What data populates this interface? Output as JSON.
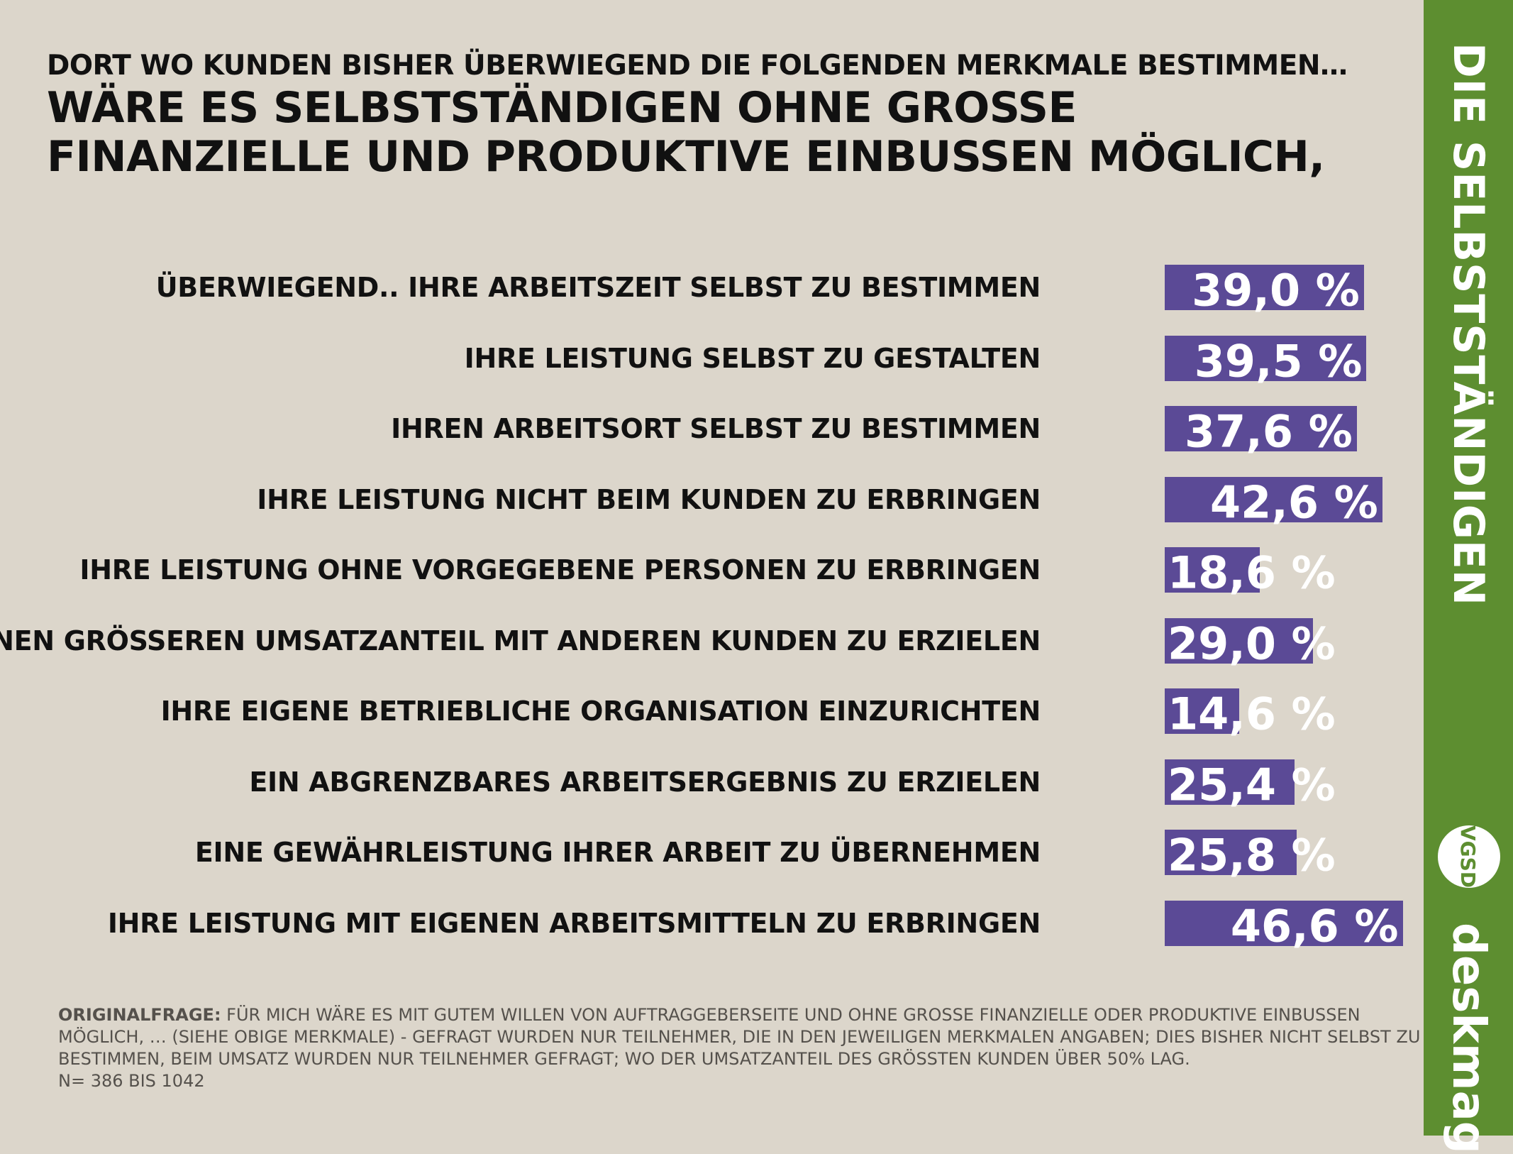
{
  "kicker": "DORT WO KUNDEN BISHER ÜBERWIEGEND DIE FOLGENDEN MERKMALE BESTIMMEN…",
  "headline": "WÄRE ES SELBSTSTÄNDIGEN OHNE GROSSE FINANZIELLE UND PRODUKTIVE EINBUSSEN MÖGLICH,",
  "side_title": "DIE SELBSTSTÄNDIGEN",
  "brand": "deskmag",
  "logo_text": "VGSD",
  "footnote": {
    "label": "ORIGINALFRAGE:",
    "text": " FÜR MICH WÄRE ES MIT GUTEM WILLEN VON AUFTRAGGEBERSEITE UND OHNE GROSSE FINANZIELLE ODER PRODUKTIVE EINBUSSEN MÖGLICH, … (SIEHE OBIGE MERKMALE) - GEFRAGT WURDEN NUR TEILNEHMER, DIE IN DEN JEWEILIGEN MERKMALEN ANGABEN; DIES BISHER NICHT SELBST ZU BESTIMMEN, BEIM UMSATZ WURDEN NUR TEILNEHMER GEFRAGT; WO DER UMSATZANTEIL DES GRÖSSTEN KUNDEN ÜBER 50% LAG.",
    "n": "N= 386 BIS 1042"
  },
  "colors": {
    "bar": "#5b4a96",
    "background": "#dcd6cb",
    "side": "#5d8e30"
  },
  "chart_data": {
    "type": "bar",
    "orientation": "horizontal",
    "categories": [
      "ÜBERWIEGEND.. IHRE ARBEITSZEIT SELBST ZU BESTIMMEN",
      "IHRE LEISTUNG SELBST ZU GESTALTEN",
      "IHREN ARBEITSORT SELBST ZU BESTIMMEN",
      "IHRE LEISTUNG NICHT BEIM KUNDEN ZU ERBRINGEN",
      "IHRE LEISTUNG OHNE VORGEGEBENE PERSONEN ZU ERBRINGEN",
      "EINEN GRÖSSEREN UMSATZANTEIL MIT ANDEREN KUNDEN ZU ERZIELEN",
      "IHRE EIGENE BETRIEBLICHE ORGANISATION EINZURICHTEN",
      "EIN ABGRENZBARES ARBEITSERGEBNIS ZU ERZIELEN",
      "EINE GEWÄHRLEISTUNG IHRER ARBEIT ZU ÜBERNEHMEN",
      "IHRE LEISTUNG MIT EIGENEN ARBEITSMITTELN ZU ERBRINGEN"
    ],
    "values": [
      39.0,
      39.5,
      37.6,
      42.6,
      18.6,
      29.0,
      14.6,
      25.4,
      25.8,
      46.6
    ],
    "value_labels": [
      "39,0 %",
      "39,5 %",
      "37,6 %",
      "42,6 %",
      "18,6 %",
      "29,0 %",
      "14,6 %",
      "25,4 %",
      "25,8 %",
      "46,6 %"
    ],
    "xlim": [
      0,
      100
    ]
  }
}
